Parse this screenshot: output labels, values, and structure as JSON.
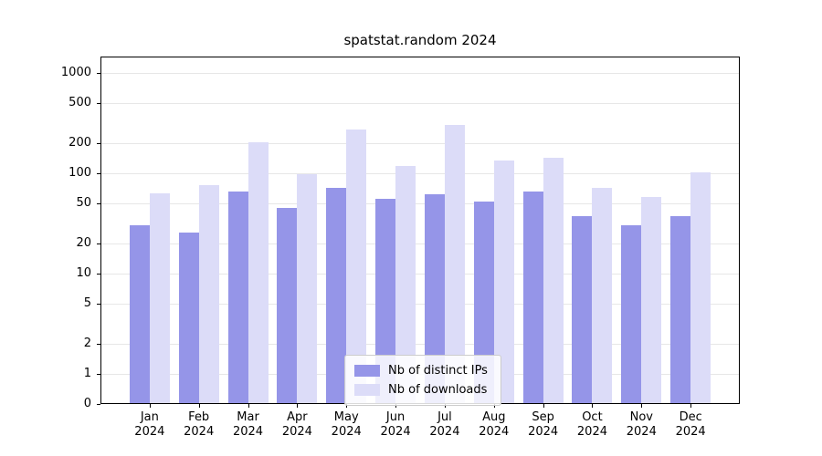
{
  "chart_data": {
    "type": "bar",
    "title": "spatstat.random 2024",
    "categories": [
      "Jan",
      "Feb",
      "Mar",
      "Apr",
      "May",
      "Jun",
      "Jul",
      "Aug",
      "Sep",
      "Oct",
      "Nov",
      "Dec"
    ],
    "x_sublabel": "2024",
    "series": [
      {
        "name": "Nb of distinct IPs",
        "color": "#9595e8",
        "values": [
          30,
          25,
          65,
          44,
          70,
          55,
          60,
          51,
          64,
          37,
          30,
          37
        ]
      },
      {
        "name": "Nb of downloads",
        "color": "#dcdcf8",
        "values": [
          62,
          75,
          200,
          95,
          265,
          115,
          300,
          130,
          140,
          70,
          57,
          100
        ]
      }
    ],
    "y_ticks": [
      0,
      1,
      2,
      5,
      10,
      20,
      50,
      100,
      200,
      500,
      1000
    ],
    "y_scale": "log",
    "ylim": [
      0,
      1000
    ],
    "grid": true,
    "legend_position": "bottom-center"
  }
}
